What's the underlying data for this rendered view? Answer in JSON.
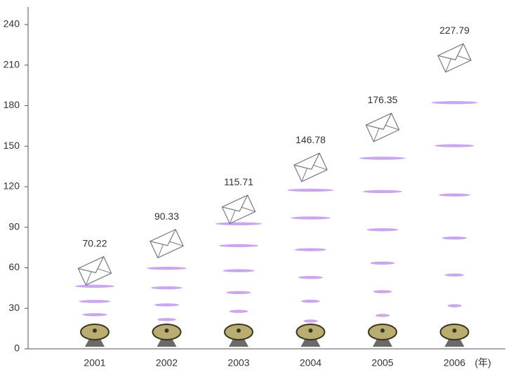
{
  "chart_data": {
    "type": "envelope",
    "categories": [
      "2001",
      "2002",
      "2003",
      "2004",
      "2005",
      "2006"
    ],
    "values": [
      70.22,
      90.33,
      115.71,
      146.78,
      176.35,
      227.79
    ],
    "x_unit": "(年)",
    "ylim": [
      0,
      253
    ],
    "yticks": [
      0,
      30,
      60,
      90,
      120,
      150,
      180,
      210,
      240
    ],
    "color": "#c9a6ee"
  }
}
